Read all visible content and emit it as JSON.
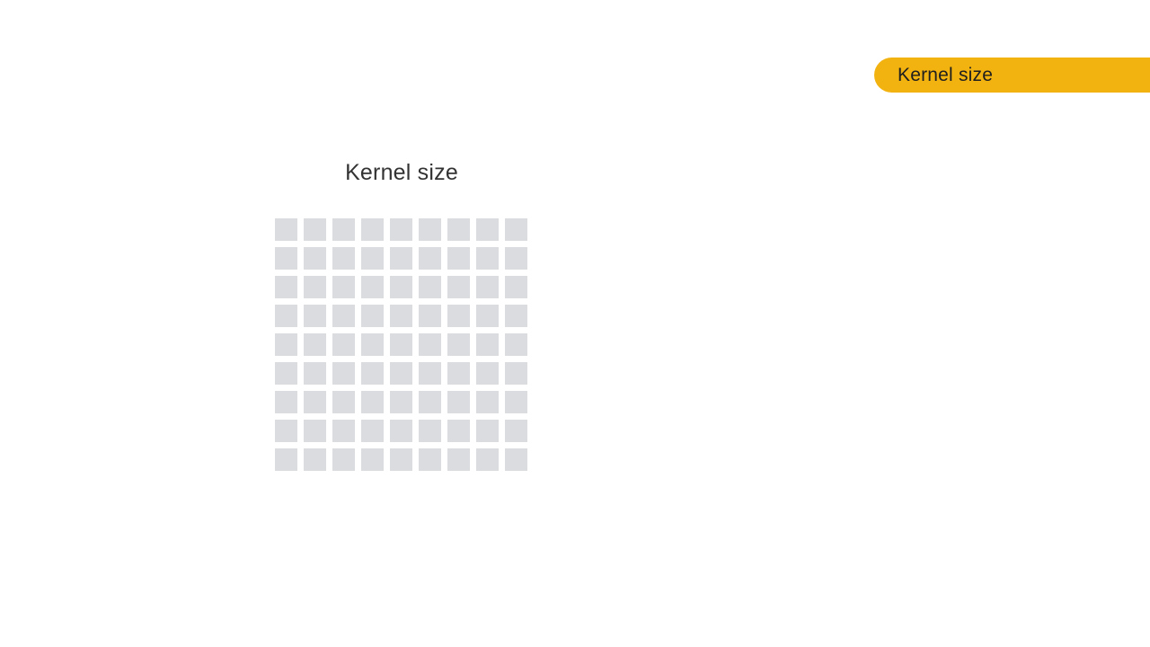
{
  "header": {
    "topic_label": "Kernel size"
  },
  "diagram": {
    "title": "Kernel size",
    "grid": {
      "rows": 9,
      "cols": 9,
      "cell_color": "#dadce0"
    }
  },
  "colors": {
    "accent": "#f2b20f",
    "background": "#ffffff",
    "text": "#333333"
  }
}
